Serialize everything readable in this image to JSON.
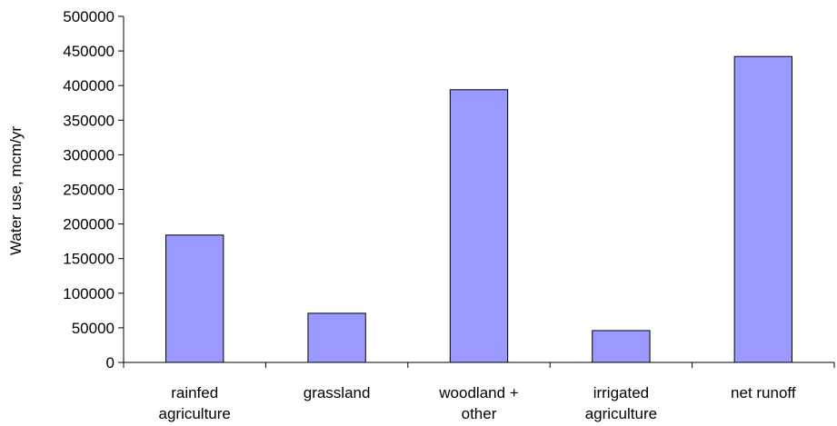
{
  "chart_data": {
    "type": "bar",
    "title": "",
    "xlabel": "",
    "ylabel": "Water use, mcm/yr",
    "categories": [
      [
        "rainfed",
        "agriculture"
      ],
      [
        "grassland"
      ],
      [
        "woodland +",
        "other"
      ],
      [
        "irrigated",
        "agriculture"
      ],
      [
        "net runoff"
      ]
    ],
    "values": [
      184000,
      71000,
      394000,
      46000,
      442000
    ],
    "ylim": [
      0,
      500000
    ],
    "yticks": [
      "0",
      "50000",
      "100000",
      "150000",
      "200000",
      "250000",
      "300000",
      "350000",
      "400000",
      "450000",
      "500000"
    ],
    "grid": false,
    "legend": "none",
    "colors": {
      "bar_fill": "#9999ff",
      "bar_stroke": "#000000",
      "axis": "#000000"
    }
  }
}
